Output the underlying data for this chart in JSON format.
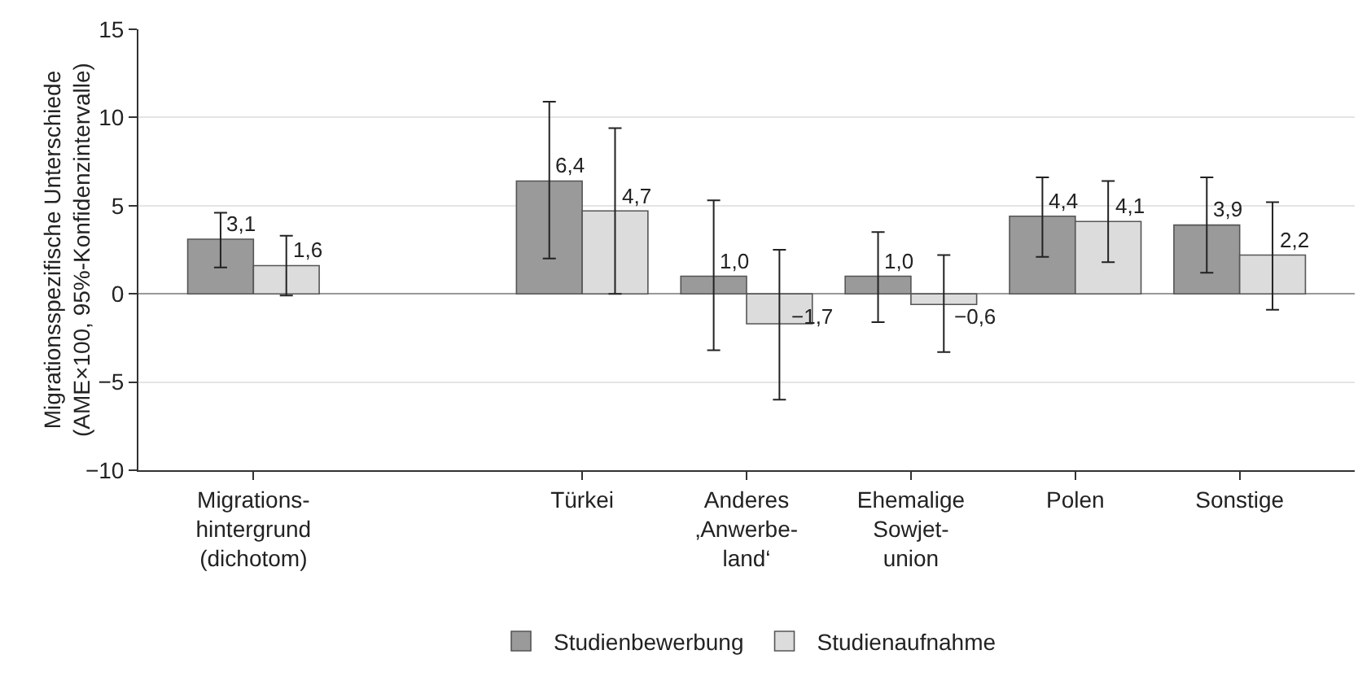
{
  "chart_data": {
    "type": "bar",
    "ylabel": "Migrationsspezifische Unterschiede\n(AME×100, 95%-Konfidenzintervalle)",
    "categories": [
      "Migrations-\nhintergrund\n(dichotom)",
      null,
      "Türkei",
      "Anderes\n‚Anwerbe-\nland‘",
      "Ehemalige\nSowjet-\nunion",
      "Polen",
      "Sonstige"
    ],
    "series": [
      {
        "name": "Studienbewerbung",
        "color": "#9a9a9a",
        "values": [
          3.1,
          null,
          6.4,
          1.0,
          1.0,
          4.4,
          3.9
        ],
        "value_labels": [
          "3,1",
          null,
          "6,4",
          "1,0",
          "1,0",
          "4,4",
          "3,9"
        ],
        "errors": [
          [
            1.5,
            4.6
          ],
          null,
          [
            2.0,
            10.9
          ],
          [
            -3.2,
            5.3
          ],
          [
            -1.6,
            3.5
          ],
          [
            2.1,
            6.6
          ],
          [
            1.2,
            6.6
          ]
        ]
      },
      {
        "name": "Studienaufnahme",
        "color": "#dcdcdc",
        "values": [
          1.6,
          null,
          4.7,
          -1.7,
          -0.6,
          4.1,
          2.2
        ],
        "value_labels": [
          "1,6",
          null,
          "4,7",
          "−1,7",
          "−0,6",
          "4,1",
          "2,2"
        ],
        "errors": [
          [
            -0.1,
            3.3
          ],
          null,
          [
            0.0,
            9.4
          ],
          [
            -6.0,
            2.5
          ],
          [
            -3.3,
            2.2
          ],
          [
            1.8,
            6.4
          ],
          [
            -0.9,
            5.2
          ]
        ]
      }
    ],
    "ylim": [
      -10,
      15
    ],
    "yticks": [
      {
        "value": -10,
        "label": "−10"
      },
      {
        "value": -5,
        "label": "−5"
      },
      0,
      5,
      10,
      15
    ],
    "grid": "y",
    "legend": "bottom"
  }
}
